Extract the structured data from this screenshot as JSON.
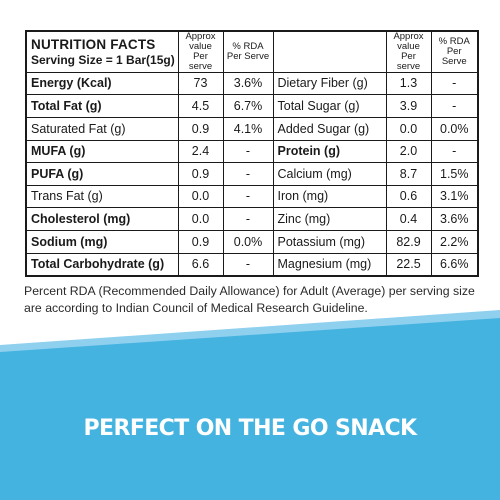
{
  "table": {
    "title": "NUTRITION FACTS",
    "serving": "Serving Size = 1 Bar(15g)",
    "header_approx": "Approx value Per serve",
    "header_rda": "% RDA Per Serve",
    "left_rows": [
      {
        "name": "Energy (Kcal)",
        "value": "73",
        "rda": "3.6%",
        "bold": true
      },
      {
        "name": "Total Fat (g)",
        "value": "4.5",
        "rda": "6.7%",
        "bold": true
      },
      {
        "name": "Saturated Fat (g)",
        "value": "0.9",
        "rda": "4.1%",
        "bold": false
      },
      {
        "name": "MUFA (g)",
        "value": "2.4",
        "rda": "-",
        "bold": true
      },
      {
        "name": "PUFA (g)",
        "value": "0.9",
        "rda": "-",
        "bold": true
      },
      {
        "name": "Trans Fat (g)",
        "value": "0.0",
        "rda": "-",
        "bold": false
      },
      {
        "name": "Cholesterol (mg)",
        "value": "0.0",
        "rda": "-",
        "bold": true
      },
      {
        "name": "Sodium (mg)",
        "value": "0.9",
        "rda": "0.0%",
        "bold": true
      },
      {
        "name": "Total Carbohydrate (g)",
        "value": "6.6",
        "rda": "-",
        "bold": true
      }
    ],
    "right_rows": [
      {
        "name": "Dietary Fiber (g)",
        "value": "1.3",
        "rda": "-",
        "bold": false
      },
      {
        "name": "Total Sugar (g)",
        "value": "3.9",
        "rda": "-",
        "bold": false
      },
      {
        "name": "Added Sugar (g)",
        "value": "0.0",
        "rda": "0.0%",
        "bold": false
      },
      {
        "name": "Protein (g)",
        "value": "2.0",
        "rda": "-",
        "bold": true
      },
      {
        "name": "Calcium (mg)",
        "value": "8.7",
        "rda": "1.5%",
        "bold": false
      },
      {
        "name": "Iron (mg)",
        "value": "0.6",
        "rda": "3.1%",
        "bold": false
      },
      {
        "name": "Zinc (mg)",
        "value": "0.4",
        "rda": "3.6%",
        "bold": false
      },
      {
        "name": "Potassium (mg)",
        "value": "82.9",
        "rda": "2.2%",
        "bold": false
      },
      {
        "name": "Magnesium (mg)",
        "value": "22.5",
        "rda": "6.6%",
        "bold": false
      }
    ]
  },
  "footnote": "Percent RDA (Recommended Daily Allowance) for Adult (Average) per serving size are according to Indian Council of Medical Research Guideline.",
  "banner": {
    "text": "PERFECT ON THE GO SNACK",
    "color_main": "#45b3e0",
    "color_light": "#8fd0ef"
  }
}
